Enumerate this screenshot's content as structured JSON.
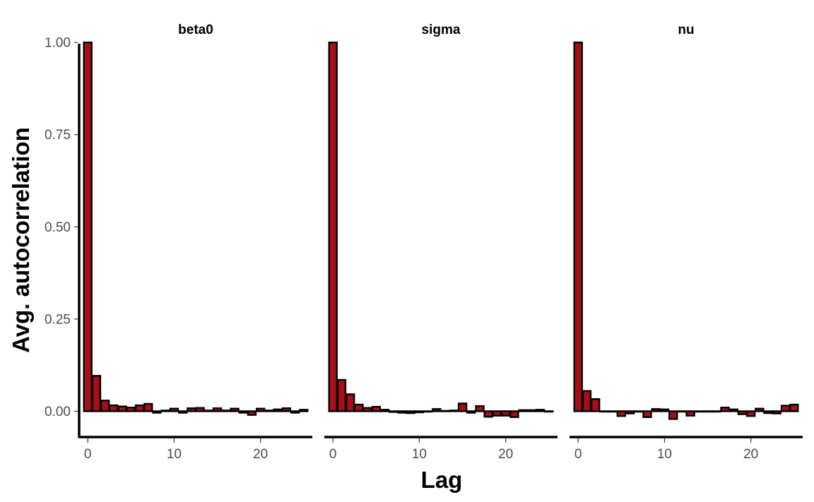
{
  "chart_data": {
    "type": "bar",
    "xlabel": "Lag",
    "ylabel": "Avg. autocorrelation",
    "xlim": [
      -1,
      26
    ],
    "ylim": [
      -0.07,
      1.05
    ],
    "yticks": [
      0.0,
      0.25,
      0.5,
      0.75,
      1.0
    ],
    "ytick_labels": [
      "0.00",
      "0.25",
      "0.50",
      "0.75",
      "1.00"
    ],
    "xticks": [
      0,
      10,
      20
    ],
    "xtick_labels": [
      "0",
      "10",
      "20"
    ],
    "grid": false,
    "bar_color": "#a50f15",
    "lags": [
      0,
      1,
      2,
      3,
      4,
      5,
      6,
      7,
      8,
      9,
      10,
      11,
      12,
      13,
      14,
      15,
      16,
      17,
      18,
      19,
      20,
      21,
      22,
      23,
      24,
      25
    ],
    "series": [
      {
        "name": "beta0",
        "values": [
          1.0,
          0.096,
          0.029,
          0.016,
          0.013,
          0.01,
          0.016,
          0.02,
          -0.004,
          0.002,
          0.007,
          -0.004,
          0.008,
          0.009,
          0.002,
          0.008,
          0.002,
          0.007,
          -0.004,
          -0.01,
          0.007,
          0.002,
          0.005,
          0.008,
          -0.004,
          0.004
        ]
      },
      {
        "name": "sigma",
        "values": [
          1.0,
          0.085,
          0.046,
          0.018,
          0.009,
          0.012,
          0.004,
          -0.002,
          -0.004,
          -0.005,
          -0.003,
          -0.001,
          0.006,
          0.001,
          0.002,
          0.021,
          -0.004,
          0.014,
          -0.015,
          -0.012,
          -0.012,
          -0.016,
          0.003,
          0.003,
          0.004,
          0.0
        ]
      },
      {
        "name": "nu",
        "values": [
          1.0,
          0.055,
          0.033,
          0.0,
          0.0,
          -0.013,
          -0.006,
          0.0,
          -0.016,
          0.006,
          0.005,
          -0.021,
          0.0,
          -0.012,
          0.0,
          0.0,
          0.0,
          0.01,
          0.005,
          -0.008,
          -0.013,
          0.007,
          -0.005,
          -0.006,
          0.015,
          0.018
        ]
      }
    ]
  }
}
